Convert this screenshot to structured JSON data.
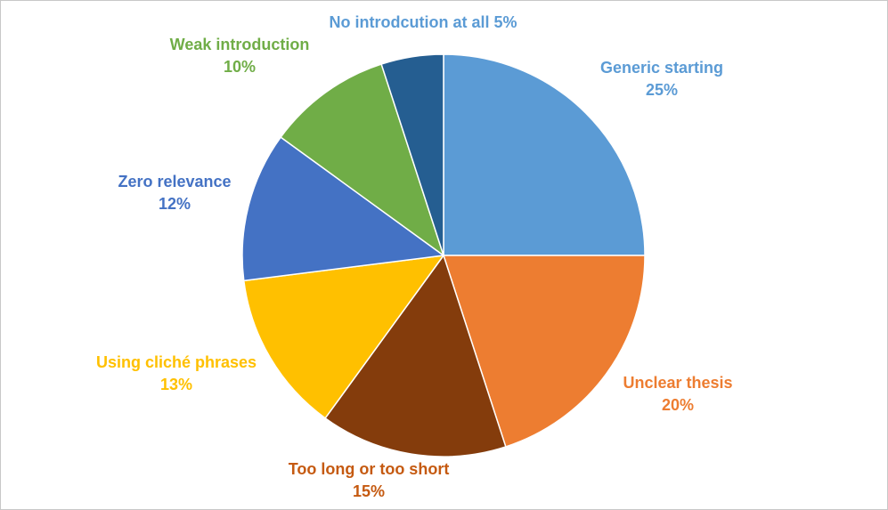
{
  "chart_data": {
    "type": "pie",
    "title": "",
    "start_angle_deg": 0,
    "direction": "clockwise",
    "slices": [
      {
        "label": "Generic starting",
        "value": 25,
        "percent_text": "25%",
        "color": "#5B9BD5",
        "label_color": "#5B9BD5"
      },
      {
        "label": "Unclear thesis",
        "value": 20,
        "percent_text": "20%",
        "color": "#ED7D31",
        "label_color": "#ED7D31"
      },
      {
        "label": "Too long or too short",
        "value": 15,
        "percent_text": "15%",
        "color": "#843C0C",
        "label_color": "#C55A11"
      },
      {
        "label": "Using cliché phrases",
        "value": 13,
        "percent_text": "13%",
        "color": "#FFC000",
        "label_color": "#FFC000"
      },
      {
        "label": "Zero relevance",
        "value": 12,
        "percent_text": "12%",
        "color": "#4472C4",
        "label_color": "#4472C4"
      },
      {
        "label": "Weak introduction",
        "value": 10,
        "percent_text": "10%",
        "color": "#70AD47",
        "label_color": "#70AD47"
      },
      {
        "label": "No introdcution at all",
        "value": 5,
        "percent_text": "5%",
        "color": "#255E91",
        "label_color": "#5B9BD5"
      }
    ],
    "slice_border_color": "#ffffff"
  }
}
